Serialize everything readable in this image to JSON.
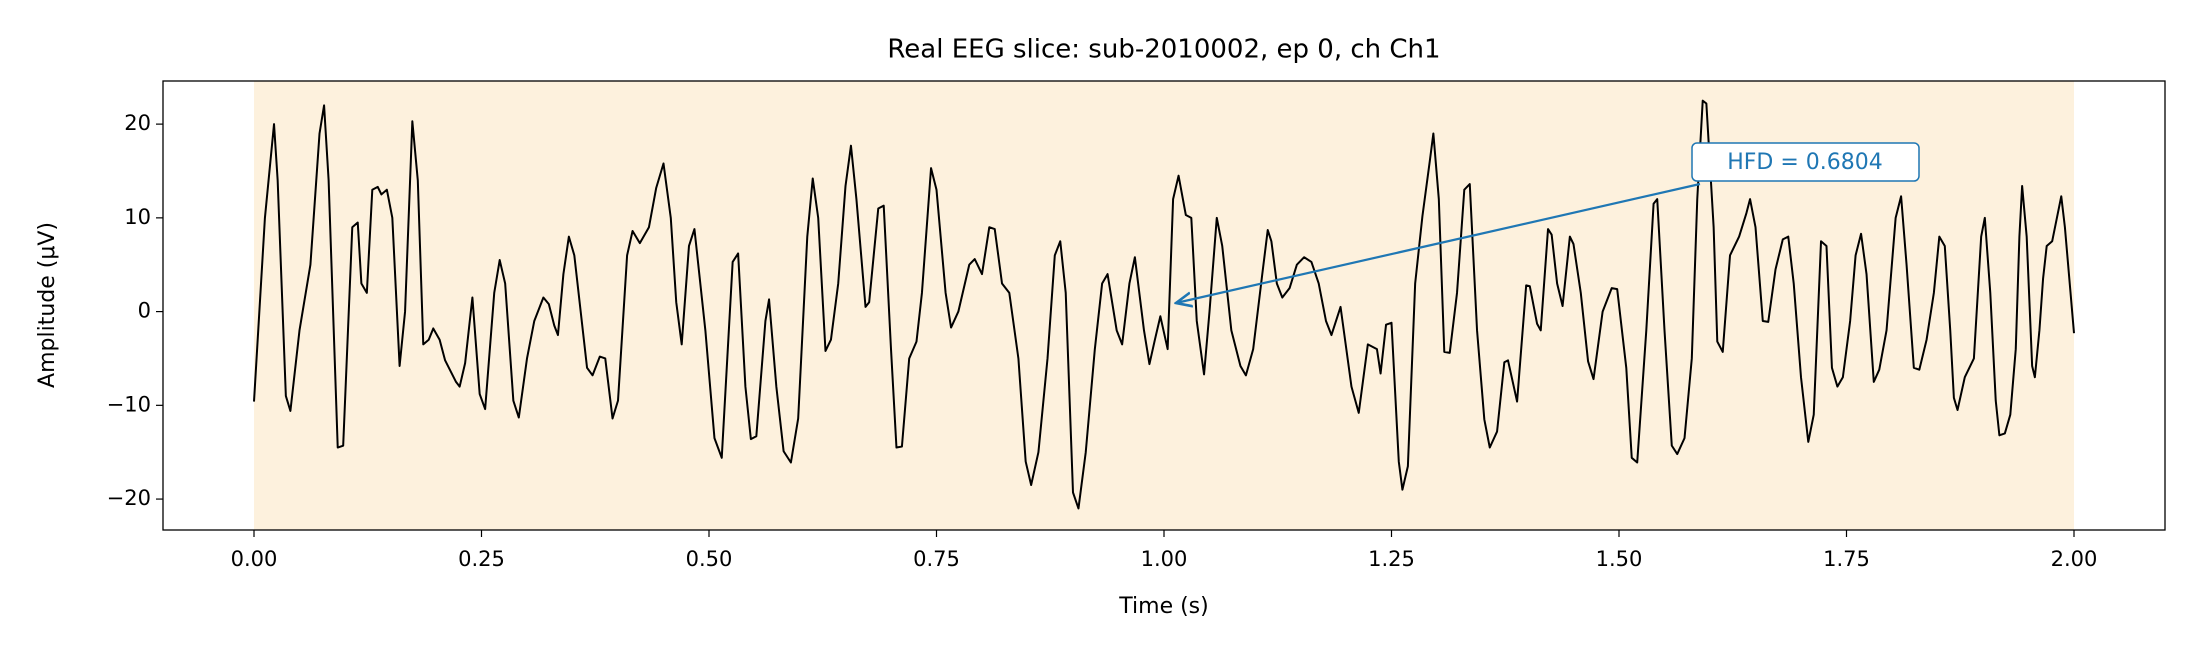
{
  "chart_data": {
    "type": "line",
    "title": "Real EEG slice: sub-2010002, ep 0, ch Ch1",
    "xlabel": "Time (s)",
    "ylabel": "Amplitude (μV)",
    "annotation": "HFD = 0.6804",
    "color": "#000000",
    "shade_color": "#fdf1dd",
    "annotation_color": "#1f77b4",
    "xlim": [
      -0.1,
      2.1
    ],
    "ylim": [
      -23.3,
      24.6
    ],
    "xticks": [
      {
        "value": 0,
        "label": "0.00"
      },
      {
        "value": 0.25,
        "label": "0.25"
      },
      {
        "value": 0.5,
        "label": "0.50"
      },
      {
        "value": 0.75,
        "label": "0.75"
      },
      {
        "value": 1,
        "label": "1.00"
      },
      {
        "value": 1.25,
        "label": "1.25"
      },
      {
        "value": 1.5,
        "label": "1.50"
      },
      {
        "value": 1.75,
        "label": "1.75"
      },
      {
        "value": 2,
        "label": "2.00"
      }
    ],
    "yticks": [
      {
        "value": -20,
        "label": "−20"
      },
      {
        "value": -10,
        "label": "−10"
      },
      0,
      10,
      20
    ],
    "x": [
      0,
      0.012,
      0.018,
      0.022,
      0.026,
      0.035,
      0.04,
      0.05,
      0.062,
      0.072,
      0.077,
      0.082,
      0.092,
      0.098,
      0.108,
      0.114,
      0.118,
      0.124,
      0.13,
      0.136,
      0.14,
      0.146,
      0.152,
      0.16,
      0.166,
      0.174,
      0.18,
      0.186,
      0.192,
      0.197,
      0.204,
      0.21,
      0.222,
      0.226,
      0.232,
      0.24,
      0.248,
      0.254,
      0.264,
      0.27,
      0.276,
      0.285,
      0.291,
      0.3,
      0.308,
      0.318,
      0.324,
      0.33,
      0.334,
      0.34,
      0.346,
      0.352,
      0.366,
      0.372,
      0.38,
      0.386,
      0.394,
      0.4,
      0.41,
      0.416,
      0.424,
      0.434,
      0.442,
      0.45,
      0.458,
      0.464,
      0.47,
      0.478,
      0.484,
      0.496,
      0.506,
      0.514,
      0.526,
      0.532,
      0.54,
      0.546,
      0.552,
      0.562,
      0.566,
      0.574,
      0.582,
      0.59,
      0.598,
      0.608,
      0.614,
      0.62,
      0.628,
      0.634,
      0.642,
      0.65,
      0.656,
      0.662,
      0.672,
      0.676,
      0.686,
      0.692,
      0.7,
      0.706,
      0.712,
      0.72,
      0.728,
      0.734,
      0.744,
      0.75,
      0.76,
      0.766,
      0.774,
      0.786,
      0.792,
      0.8,
      0.808,
      0.814,
      0.822,
      0.83,
      0.84,
      0.848,
      0.854,
      0.862,
      0.872,
      0.88,
      0.886,
      0.892,
      0.9,
      0.906,
      0.914,
      0.924,
      0.932,
      0.938,
      0.948,
      0.954,
      0.962,
      0.968,
      0.978,
      0.984,
      0.99,
      0.996,
      1.004,
      1.01,
      1.016,
      1.024,
      1.03,
      1.036,
      1.044,
      1.05,
      1.058,
      1.064,
      1.074,
      1.084,
      1.09,
      1.098,
      1.108,
      1.114,
      1.118,
      1.124,
      1.13,
      1.138,
      1.146,
      1.154,
      1.162,
      1.17,
      1.178,
      1.184,
      1.194,
      1.206,
      1.214,
      1.224,
      1.234,
      1.238,
      1.244,
      1.25,
      1.258,
      1.262,
      1.268,
      1.276,
      1.284,
      1.292,
      1.296,
      1.302,
      1.308,
      1.314,
      1.322,
      1.33,
      1.336,
      1.344,
      1.352,
      1.358,
      1.366,
      1.374,
      1.378,
      1.388,
      1.398,
      1.402,
      1.41,
      1.414,
      1.422,
      1.426,
      1.432,
      1.438,
      1.446,
      1.45,
      1.458,
      1.466,
      1.472,
      1.482,
      1.492,
      1.498,
      1.508,
      1.514,
      1.52,
      1.53,
      1.538,
      1.542,
      1.55,
      1.558,
      1.564,
      1.572,
      1.58,
      1.586,
      1.592,
      1.596,
      1.604,
      1.608,
      1.614,
      1.622,
      1.632,
      1.64,
      1.644,
      1.65,
      1.658,
      1.664,
      1.672,
      1.68,
      1.686,
      1.692,
      1.7,
      1.708,
      1.714,
      1.722,
      1.728,
      1.734,
      1.74,
      1.746,
      1.754,
      1.76,
      1.766,
      1.772,
      1.78,
      1.786,
      1.794,
      1.804,
      1.81,
      1.816,
      1.824,
      1.83,
      1.838,
      1.846,
      1.852,
      1.858,
      1.864,
      1.868,
      1.872,
      1.88,
      1.89,
      1.898,
      1.902,
      1.908,
      1.914,
      1.918,
      1.924,
      1.93,
      1.936,
      1.94,
      1.943,
      1.948,
      1.954,
      1.957,
      1.962,
      1.966,
      1.97,
      1.976,
      1.986,
      1.99,
      2.0
    ],
    "values": [
      -9.6,
      10,
      16,
      20,
      14,
      -9,
      -10.6,
      -2,
      5,
      19,
      22,
      14,
      -14.5,
      -14.3,
      9,
      9.5,
      3,
      2,
      13,
      13.3,
      12.5,
      13,
      10,
      -5.8,
      0,
      20.3,
      14,
      -3.5,
      -3,
      -1.8,
      -3,
      -5.2,
      -7.5,
      -8,
      -5.5,
      1.5,
      -8.8,
      -10.4,
      2,
      5.5,
      3,
      -9.5,
      -11.3,
      -5,
      -1,
      1.5,
      0.8,
      -1.5,
      -2.5,
      4,
      8,
      6,
      -6,
      -6.8,
      -4.8,
      -5,
      -11.4,
      -9.5,
      6,
      8.6,
      7.3,
      9,
      13.2,
      15.8,
      10,
      1,
      -3.5,
      7,
      8.8,
      -2,
      -13.5,
      -15.6,
      5.3,
      6.2,
      -8,
      -13.6,
      -13.3,
      -1,
      1.3,
      -8,
      -14.9,
      -16.1,
      -11.4,
      8,
      14.2,
      10,
      -4.2,
      -3,
      3,
      13.4,
      17.7,
      12,
      0.5,
      1,
      11,
      11.3,
      -4,
      -14.5,
      -14.4,
      -5,
      -3.2,
      2,
      15.3,
      13,
      2,
      -1.7,
      0,
      5,
      5.6,
      4,
      9,
      8.8,
      3,
      2,
      -5,
      -16,
      -18.5,
      -15,
      -5,
      6,
      7.5,
      2,
      -19.3,
      -21,
      -15,
      -4,
      3,
      4,
      -2,
      -3.5,
      3,
      5.8,
      -2,
      -5.6,
      -3,
      -0.5,
      -4,
      12,
      14.5,
      10.3,
      10,
      -1,
      -6.7,
      0,
      10,
      7,
      -2,
      -5.8,
      -6.8,
      -4,
      4,
      8.7,
      7.5,
      3,
      1.5,
      2.5,
      5,
      5.8,
      5.3,
      3,
      -1,
      -2.5,
      0.5,
      -8,
      -10.8,
      -3.5,
      -4,
      -6.6,
      -1.4,
      -1.2,
      -16,
      -19,
      -16.5,
      3,
      10.2,
      16,
      19,
      12,
      -4.3,
      -4.4,
      2,
      13,
      13.6,
      -2,
      -11.5,
      -14.5,
      -12.8,
      -5.4,
      -5.2,
      -9.6,
      2.8,
      2.7,
      -1.3,
      -2,
      8.8,
      8.2,
      3,
      0.6,
      8,
      7.2,
      2,
      -5.3,
      -7.2,
      0,
      2.5,
      2.4,
      -6,
      -15.6,
      -16.1,
      -2,
      11.5,
      12,
      -2,
      -14.3,
      -15.2,
      -13.5,
      -5,
      12,
      22.5,
      22.2,
      9,
      -3.2,
      -4.3,
      6,
      8,
      10.5,
      12,
      9,
      -1,
      -1.1,
      4.5,
      7.7,
      8,
      3,
      -7,
      -13.9,
      -11,
      7.5,
      7,
      -6,
      -8,
      -7,
      -1,
      6,
      8.3,
      4,
      -7.5,
      -6.2,
      -2,
      10,
      12.3,
      5,
      -6,
      -6.2,
      -3,
      2,
      8,
      7,
      -2,
      -9.2,
      -10.5,
      -7,
      -5,
      8,
      10,
      2,
      -9.5,
      -13.2,
      -13,
      -11,
      -4,
      8,
      13.4,
      8,
      -5.8,
      -7,
      -2,
      3.5,
      7,
      7.5,
      12.3,
      9,
      -2.3
    ]
  }
}
